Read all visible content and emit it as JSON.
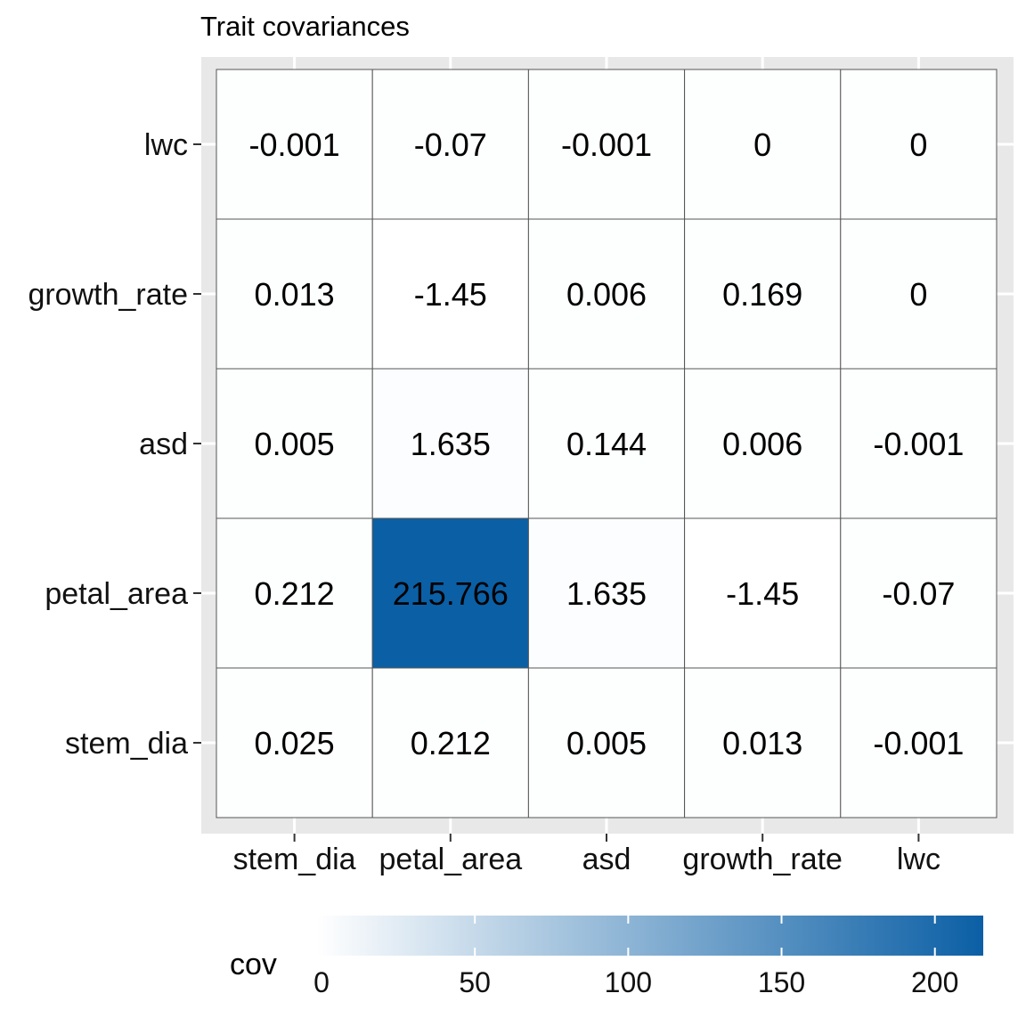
{
  "chart_data": {
    "type": "heatmap",
    "title": "Trait covariances",
    "x_categories": [
      "stem_dia",
      "petal_area",
      "asd",
      "growth_rate",
      "lwc"
    ],
    "y_categories": [
      "stem_dia",
      "petal_area",
      "asd",
      "growth_rate",
      "lwc"
    ],
    "values": [
      [
        0.025,
        0.212,
        0.005,
        0.013,
        -0.001
      ],
      [
        0.212,
        215.766,
        1.635,
        -1.45,
        -0.07
      ],
      [
        0.005,
        1.635,
        0.144,
        0.006,
        -0.001
      ],
      [
        0.013,
        -1.45,
        0.006,
        0.169,
        0
      ],
      [
        -0.001,
        -0.07,
        -0.001,
        0,
        0
      ]
    ],
    "labels": [
      [
        "0.025",
        "0.212",
        "0.005",
        "0.013",
        "-0.001"
      ],
      [
        "0.212",
        "215.766",
        "1.635",
        "-1.45",
        "-0.07"
      ],
      [
        "0.005",
        "1.635",
        "0.144",
        "0.006",
        "-0.001"
      ],
      [
        "0.013",
        "-1.45",
        "0.006",
        "0.169",
        "0"
      ],
      [
        "-0.001",
        "-0.07",
        "-0.001",
        "0",
        "0"
      ]
    ],
    "legend": {
      "title": "cov",
      "position": "bottom",
      "ticks": [
        0,
        50,
        100,
        150,
        200
      ],
      "tick_labels": [
        "0",
        "50",
        "100",
        "150",
        "200"
      ],
      "range": [
        -1.45,
        215.766
      ],
      "low_color": "#FFFFFF",
      "high_color": "#0B5FA5"
    },
    "panel_background": "#E8E8E8",
    "grid_color": "#FFFFFF",
    "cell_border_color": "#555555"
  }
}
